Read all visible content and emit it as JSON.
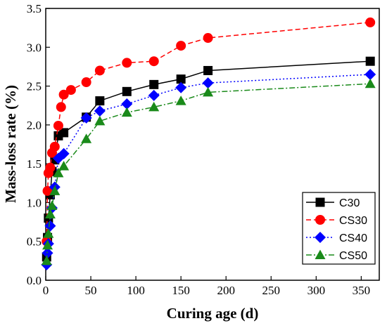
{
  "chart_data": {
    "type": "line",
    "xlabel": "Curing age (d)",
    "ylabel": "Mass-loss rate (%)",
    "xlim": [
      0,
      370
    ],
    "ylim": [
      0,
      3.5
    ],
    "xticks": [
      0,
      50,
      100,
      150,
      200,
      250,
      300,
      350
    ],
    "yticks": [
      0.0,
      0.5,
      1.0,
      1.5,
      2.0,
      2.5,
      3.0,
      3.5
    ],
    "ytick_labels": [
      "0.0",
      "0.5",
      "1.0",
      "1.5",
      "2.0",
      "2.5",
      "3.0",
      "3.5"
    ],
    "grid": false,
    "legend_position": "bottom-right",
    "series": [
      {
        "name": "C30",
        "color": "#000000",
        "marker": "square",
        "line_style": "solid",
        "x": [
          1,
          2,
          3,
          5,
          7,
          10,
          14,
          20,
          45,
          60,
          90,
          120,
          150,
          180,
          360
        ],
        "y": [
          0.3,
          0.55,
          0.8,
          1.1,
          1.4,
          1.55,
          1.86,
          1.9,
          2.1,
          2.31,
          2.43,
          2.52,
          2.59,
          2.7,
          2.82
        ]
      },
      {
        "name": "CS30",
        "color": "#ff0000",
        "marker": "circle",
        "line_style": "dashed",
        "x": [
          1,
          2,
          3,
          5,
          7,
          10,
          14,
          17,
          20,
          28,
          45,
          60,
          90,
          120,
          150,
          180,
          360
        ],
        "y": [
          0.5,
          1.15,
          1.38,
          1.45,
          1.64,
          1.72,
          1.99,
          2.23,
          2.39,
          2.45,
          2.55,
          2.7,
          2.8,
          2.82,
          3.02,
          3.12,
          3.32
        ]
      },
      {
        "name": "CS40",
        "color": "#0000ff",
        "marker": "diamond",
        "line_style": "dotted",
        "x": [
          1,
          2,
          3,
          5,
          7,
          10,
          14,
          20,
          45,
          60,
          90,
          120,
          150,
          180,
          360
        ],
        "y": [
          0.2,
          0.35,
          0.47,
          0.7,
          0.93,
          1.2,
          1.57,
          1.63,
          2.09,
          2.18,
          2.27,
          2.38,
          2.48,
          2.54,
          2.65
        ]
      },
      {
        "name": "CS50",
        "color": "#1a8a1a",
        "marker": "triangle",
        "line_style": "dashdot",
        "x": [
          1,
          2,
          3,
          5,
          7,
          10,
          14,
          20,
          45,
          60,
          90,
          120,
          150,
          180,
          360
        ],
        "y": [
          0.25,
          0.45,
          0.6,
          0.85,
          0.96,
          1.15,
          1.38,
          1.47,
          1.82,
          2.05,
          2.16,
          2.23,
          2.31,
          2.42,
          2.53
        ]
      }
    ]
  }
}
